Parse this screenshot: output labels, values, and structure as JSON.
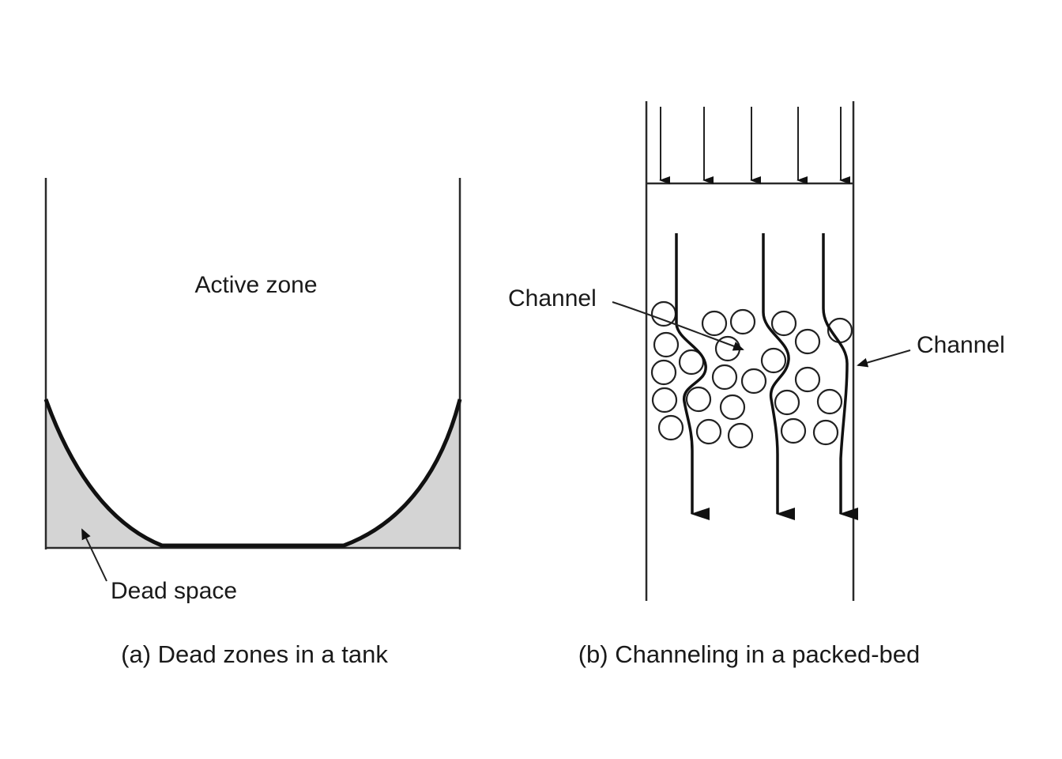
{
  "panel_a": {
    "active_zone_label": "Active zone",
    "dead_space_label": "Dead space",
    "caption": "(a) Dead zones in a tank",
    "dead_space_color": "#d4d4d4"
  },
  "panel_b": {
    "channel_label_left": "Channel",
    "channel_label_right": "Channel",
    "caption": "(b) Channeling in a packed-bed"
  }
}
